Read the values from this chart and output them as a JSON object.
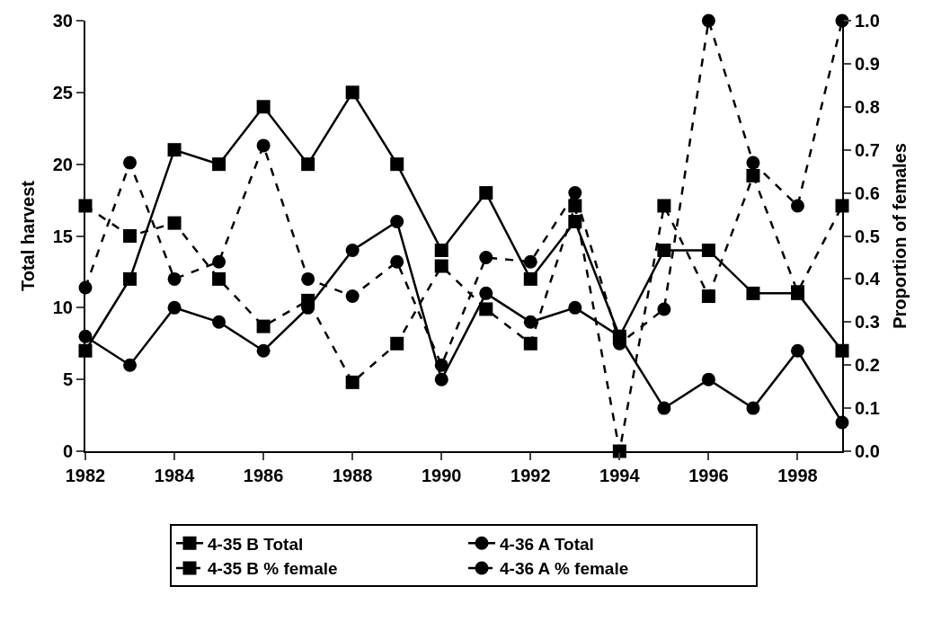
{
  "chart_data": {
    "type": "line",
    "ylabel": "Total harvest",
    "y2label": "Proportion of females",
    "x": [
      1982,
      1983,
      1984,
      1985,
      1986,
      1987,
      1988,
      1989,
      1990,
      1991,
      1992,
      1993,
      1994,
      1995,
      1996,
      1997,
      1998,
      1999
    ],
    "xlim": [
      1982,
      1999
    ],
    "xticks": [
      1982,
      1984,
      1986,
      1988,
      1990,
      1992,
      1994,
      1996,
      1998
    ],
    "ylim": [
      0,
      30
    ],
    "yticks": [
      0,
      5,
      10,
      15,
      20,
      25,
      30
    ],
    "y2lim": [
      0,
      1
    ],
    "y2ticks": [
      {
        "value": 0,
        "label": "0.0"
      },
      {
        "value": 0.1,
        "label": "0.1"
      },
      {
        "value": 0.2,
        "label": "0.2"
      },
      {
        "value": 0.3,
        "label": "0.3"
      },
      {
        "value": 0.4,
        "label": "0.4"
      },
      {
        "value": 0.5,
        "label": "0.5"
      },
      {
        "value": 0.6,
        "label": "0.6"
      },
      {
        "value": 0.7,
        "label": "0.7"
      },
      {
        "value": 0.8,
        "label": "0.8"
      },
      {
        "value": 0.9,
        "label": "0.9"
      },
      {
        "value": 1,
        "label": "1.0"
      }
    ],
    "legend": "bottom",
    "series": [
      {
        "name": "4-35 B Total",
        "color": "#000000",
        "marker": "square",
        "line_style": "solid",
        "values": [
          7,
          12,
          21,
          20,
          24,
          20,
          25,
          20,
          14,
          18,
          12,
          16,
          8,
          14,
          14,
          11,
          11,
          7
        ]
      },
      {
        "name": "4-36 A Total",
        "color": "#000000",
        "marker": "circle",
        "line_style": "solid",
        "values": [
          8,
          6,
          10,
          9,
          7,
          10,
          14,
          16,
          5,
          11,
          9,
          10,
          8,
          3,
          5,
          3,
          7,
          2
        ]
      },
      {
        "name": "4-35 B % female",
        "color": "#000000",
        "marker": "square",
        "line_style": "dashed",
        "axis": "y2",
        "values": [
          0.57,
          0.5,
          0.53,
          0.4,
          0.29,
          0.35,
          0.16,
          0.25,
          0.43,
          0.33,
          0.25,
          0.57,
          0.0,
          0.57,
          0.36,
          0.64,
          0.37,
          0.57
        ]
      },
      {
        "name": "4-36 A % female",
        "color": "#000000",
        "marker": "circle",
        "line_style": "dashed",
        "axis": "y2",
        "values": [
          0.38,
          0.67,
          0.4,
          0.44,
          0.71,
          0.4,
          0.36,
          0.44,
          0.2,
          0.45,
          0.44,
          0.6,
          0.25,
          0.33,
          1.0,
          0.67,
          0.57,
          1.0
        ]
      }
    ]
  }
}
